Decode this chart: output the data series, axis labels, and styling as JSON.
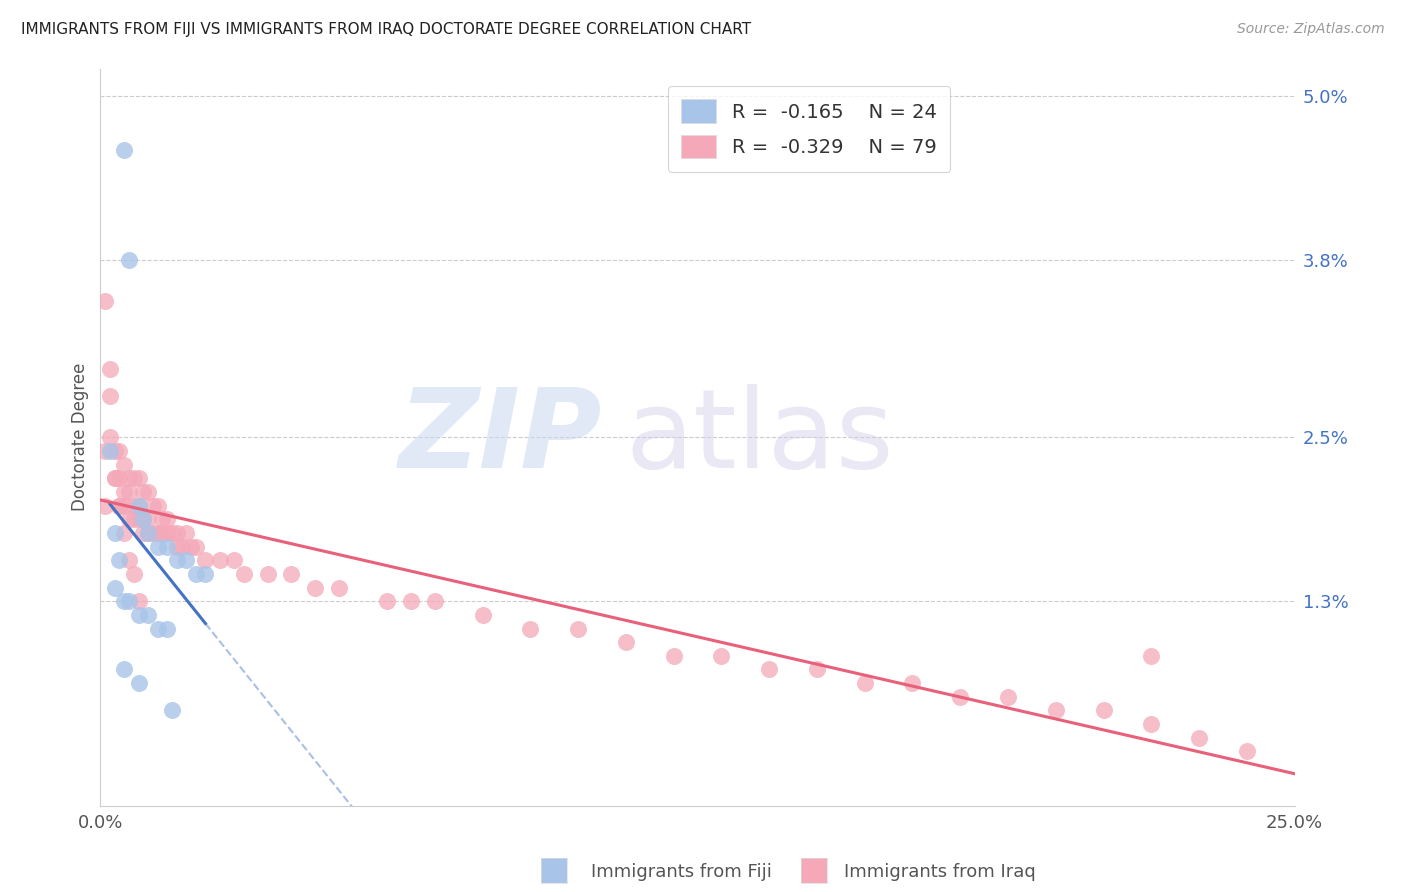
{
  "title": "IMMIGRANTS FROM FIJI VS IMMIGRANTS FROM IRAQ DOCTORATE DEGREE CORRELATION CHART",
  "source": "Source: ZipAtlas.com",
  "ylabel": "Doctorate Degree",
  "xlim": [
    0.0,
    0.25
  ],
  "ylim": [
    -0.002,
    0.052
  ],
  "plot_ylim": [
    0.0,
    0.05
  ],
  "xticks": [
    0.0,
    0.25
  ],
  "xtick_labels": [
    "0.0%",
    "25.0%"
  ],
  "yticks_right": [
    0.013,
    0.025,
    0.038,
    0.05
  ],
  "ytick_labels_right": [
    "1.3%",
    "2.5%",
    "3.8%",
    "5.0%"
  ],
  "legend_fiji_R": "-0.165",
  "legend_fiji_N": "24",
  "legend_iraq_R": "-0.329",
  "legend_iraq_N": "79",
  "color_fiji": "#a8c4e8",
  "color_iraq": "#f4a8b8",
  "color_fiji_line": "#4472c4",
  "color_iraq_line": "#e8607a",
  "color_grid": "#cccccc",
  "fiji_x": [
    0.005,
    0.006,
    0.002,
    0.003,
    0.004,
    0.008,
    0.009,
    0.01,
    0.012,
    0.014,
    0.016,
    0.018,
    0.02,
    0.022,
    0.003,
    0.005,
    0.006,
    0.008,
    0.01,
    0.012,
    0.014,
    0.005,
    0.008,
    0.015
  ],
  "fiji_y": [
    0.046,
    0.038,
    0.024,
    0.018,
    0.016,
    0.02,
    0.019,
    0.018,
    0.017,
    0.017,
    0.016,
    0.016,
    0.015,
    0.015,
    0.014,
    0.013,
    0.013,
    0.012,
    0.012,
    0.011,
    0.011,
    0.008,
    0.007,
    0.005
  ],
  "iraq_x": [
    0.001,
    0.001,
    0.002,
    0.002,
    0.003,
    0.003,
    0.004,
    0.004,
    0.004,
    0.005,
    0.005,
    0.005,
    0.006,
    0.006,
    0.006,
    0.007,
    0.007,
    0.007,
    0.008,
    0.008,
    0.008,
    0.009,
    0.009,
    0.009,
    0.01,
    0.01,
    0.01,
    0.011,
    0.011,
    0.012,
    0.012,
    0.013,
    0.013,
    0.014,
    0.014,
    0.015,
    0.016,
    0.016,
    0.017,
    0.018,
    0.019,
    0.02,
    0.022,
    0.025,
    0.028,
    0.03,
    0.035,
    0.04,
    0.045,
    0.05,
    0.06,
    0.065,
    0.07,
    0.08,
    0.09,
    0.1,
    0.11,
    0.12,
    0.13,
    0.14,
    0.15,
    0.16,
    0.17,
    0.18,
    0.19,
    0.2,
    0.21,
    0.22,
    0.23,
    0.24,
    0.001,
    0.002,
    0.003,
    0.004,
    0.005,
    0.006,
    0.007,
    0.008,
    0.22
  ],
  "iraq_y": [
    0.024,
    0.02,
    0.03,
    0.025,
    0.024,
    0.022,
    0.024,
    0.022,
    0.02,
    0.023,
    0.021,
    0.02,
    0.022,
    0.021,
    0.019,
    0.022,
    0.02,
    0.019,
    0.022,
    0.02,
    0.019,
    0.021,
    0.019,
    0.018,
    0.021,
    0.019,
    0.018,
    0.02,
    0.018,
    0.02,
    0.018,
    0.019,
    0.018,
    0.019,
    0.018,
    0.018,
    0.018,
    0.017,
    0.017,
    0.018,
    0.017,
    0.017,
    0.016,
    0.016,
    0.016,
    0.015,
    0.015,
    0.015,
    0.014,
    0.014,
    0.013,
    0.013,
    0.013,
    0.012,
    0.011,
    0.011,
    0.01,
    0.009,
    0.009,
    0.008,
    0.008,
    0.007,
    0.007,
    0.006,
    0.006,
    0.005,
    0.005,
    0.004,
    0.003,
    0.002,
    0.035,
    0.028,
    0.022,
    0.02,
    0.018,
    0.016,
    0.015,
    0.013,
    0.009
  ]
}
